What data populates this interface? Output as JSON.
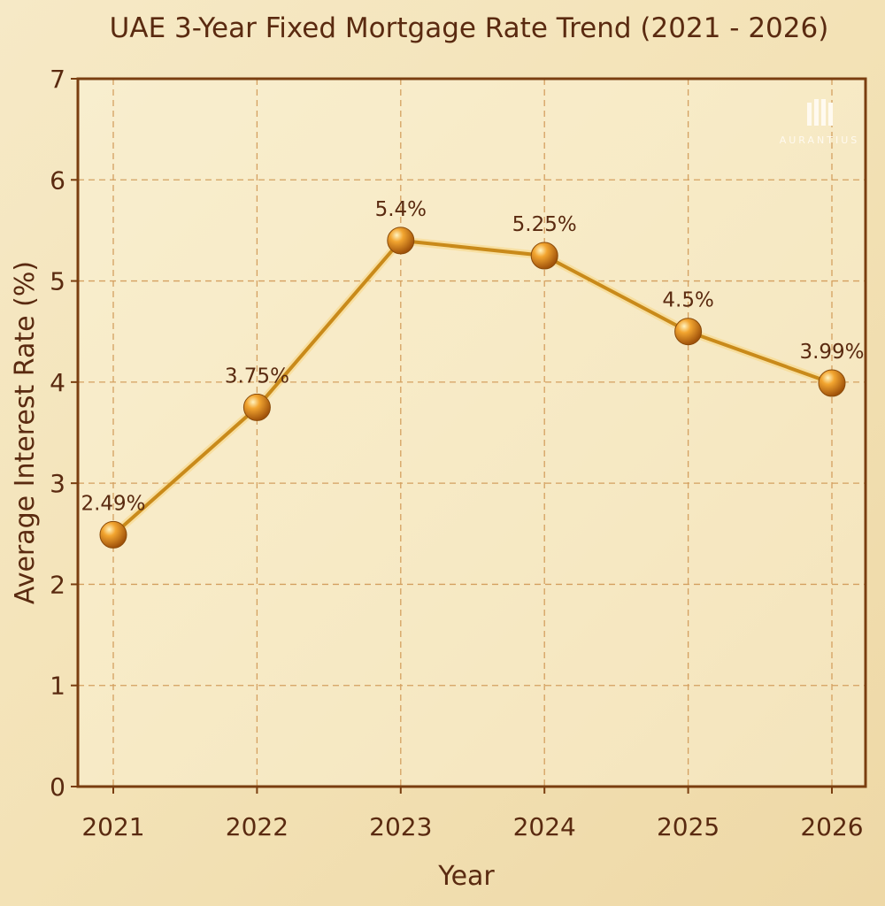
{
  "chart_data": {
    "type": "line",
    "title": "UAE 3-Year Fixed Mortgage Rate Trend (2021 - 2026)",
    "xlabel": "Year",
    "ylabel": "Average Interest Rate (%)",
    "categories": [
      "2021",
      "2022",
      "2023",
      "2024",
      "2025",
      "2026"
    ],
    "values": [
      2.49,
      3.75,
      5.4,
      5.25,
      4.5,
      3.99
    ],
    "data_labels": [
      "2.49%",
      "3.75%",
      "5.4%",
      "5.25%",
      "4.5%",
      "3.99%"
    ],
    "ylim": [
      0,
      7
    ],
    "yticks": [
      0,
      1,
      2,
      3,
      4,
      5,
      6,
      7
    ],
    "grid": true,
    "colors": {
      "line": "#c98a1a",
      "marker": "#e08a10",
      "axis": "#7a3e10",
      "grid": "#d4a060",
      "text": "#5a2a10"
    }
  },
  "logo": {
    "text": "AURANTIUS"
  }
}
